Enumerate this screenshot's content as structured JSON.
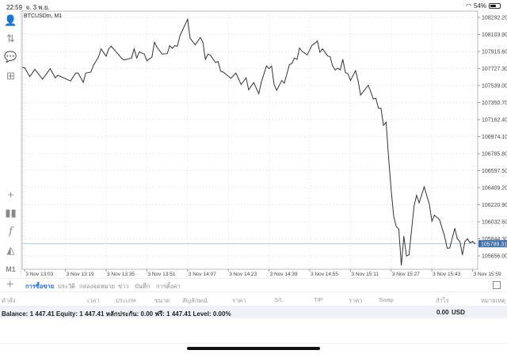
{
  "status_bar": {
    "time": "22:59",
    "date": "จ. 3 พ.ย.",
    "battery": "54%",
    "battery_level": 0.54,
    "wifi_icon": "wifi-icon"
  },
  "toolbar": {
    "items": [
      "account-icon",
      "trade-arrows-icon",
      "chat-icon",
      "new-document-icon",
      "crosshair-icon",
      "candles-icon",
      "indicators-icon",
      "objects-icon"
    ],
    "timeframe": "M1"
  },
  "chart_data": {
    "type": "line",
    "title": "BTCUSDm, M1",
    "current_price": "105789.31",
    "xlim": [
      "13:02",
      "16:01"
    ],
    "ylim": [
      105507,
      108362
    ],
    "grid": true,
    "y_ticks": [
      "108292.20",
      "108103.90",
      "107915.60",
      "107727.30",
      "107539.00",
      "107350.70",
      "107162.40",
      "106974.10",
      "106785.80",
      "106597.50",
      "106409.20",
      "106220.90",
      "106032.60",
      "105844.30",
      "105656.00"
    ],
    "x_ticks": [
      "3 Nov 13:03",
      "3 Nov 13:19",
      "3 Nov 13:35",
      "3 Nov 13:51",
      "3 Nov 14:07",
      "3 Nov 14:23",
      "3 Nov 14:39",
      "3 Nov 14:55",
      "3 Nov 15:11",
      "3 Nov 15:27",
      "3 Nov 15:43",
      "3 Nov 15:59"
    ],
    "series": [
      {
        "x": [
          "13:02",
          "13:03",
          "13:05",
          "13:07",
          "13:10",
          "13:13",
          "13:15",
          "13:16",
          "13:21",
          "13:23",
          "13:24",
          "13:26",
          "13:27",
          "13:29",
          "13:30",
          "13:32",
          "13:33",
          "13:35",
          "13:36",
          "13:37",
          "13:41",
          "13:42",
          "13:45",
          "13:46",
          "13:47",
          "13:48",
          "13:50",
          "13:51",
          "13:53",
          "13:54",
          "13:55",
          "13:57",
          "13:59",
          "14:00",
          "14:01",
          "14:02",
          "14:03",
          "14:04",
          "14:07",
          "14:08",
          "14:10",
          "14:12",
          "14:13",
          "14:14",
          "14:15",
          "14:16",
          "14:18",
          "14:19",
          "14:20",
          "14:21",
          "14:24",
          "14:26",
          "14:28",
          "14:30",
          "14:31",
          "14:33",
          "14:35",
          "14:36",
          "14:38",
          "14:39",
          "14:40",
          "14:41",
          "14:42",
          "14:44",
          "14:45",
          "14:47",
          "14:48",
          "14:49",
          "14:50",
          "14:51",
          "14:52",
          "14:54",
          "14:56",
          "14:57",
          "14:58",
          "14:59",
          "15:00",
          "15:02",
          "15:03",
          "15:04",
          "15:05",
          "15:06",
          "15:07",
          "15:08",
          "15:09",
          "15:10",
          "15:11",
          "15:13",
          "15:14",
          "15:15",
          "15:18",
          "15:20",
          "15:21",
          "15:22",
          "15:23",
          "15:24",
          "15:25",
          "15:26",
          "15:27",
          "15:28",
          "15:29",
          "15:30",
          "15:31",
          "15:32",
          "15:33",
          "15:34",
          "15:36",
          "15:37",
          "15:38",
          "15:40",
          "15:42",
          "15:43",
          "15:44",
          "15:46",
          "15:48",
          "15:49",
          "15:50",
          "15:52",
          "15:53",
          "15:54",
          "15:55",
          "15:56",
          "15:57",
          "15:58",
          "15:59",
          "16:00"
        ],
        "y": [
          107740,
          107735,
          107638,
          107717,
          107609,
          107725,
          107624,
          107653,
          107589,
          107676,
          107676,
          107574,
          107676,
          107688,
          107760,
          107857,
          107944,
          107863,
          107944,
          107974,
          107843,
          107822,
          107843,
          107944,
          107843,
          107909,
          107887,
          107813,
          107852,
          108018,
          107959,
          107887,
          107892,
          107979,
          107950,
          107979,
          107974,
          108091,
          108272,
          108062,
          107988,
          108070,
          108018,
          107828,
          107887,
          107872,
          107793,
          107804,
          107696,
          107688,
          107618,
          107676,
          107550,
          107624,
          107492,
          107571,
          107449,
          107580,
          107755,
          107725,
          107755,
          107550,
          107486,
          107594,
          107565,
          107769,
          107784,
          107843,
          107828,
          107953,
          107916,
          107878,
          107988,
          108003,
          108032,
          107907,
          107944,
          107866,
          107857,
          107755,
          107711,
          107731,
          107711,
          107828,
          107682,
          107668,
          107594,
          107703,
          107594,
          107434,
          107542,
          107390,
          107399,
          107288,
          107288,
          107098,
          107133,
          106733,
          106383,
          106091,
          105980,
          105951,
          105551,
          105872,
          105653,
          105667,
          106208,
          106324,
          106243,
          106418,
          106223,
          106039,
          106105,
          106056,
          105872,
          105741,
          105741,
          105960,
          105843,
          105814,
          105667,
          105814,
          105843,
          105799,
          105814,
          105789
        ]
      }
    ]
  },
  "tabs": {
    "items": [
      "การซื้อขาย",
      "ประวัติ",
      "กล่องจดหมาย",
      "ข่าว",
      "บันทึก",
      "การตั้งค่า"
    ],
    "active": 0
  },
  "columns": [
    "คำสั่ง",
    "เวลา",
    "ประเภท",
    "ขนาด",
    "สัญลักษณ์",
    "ราคา",
    "S/L",
    "T/P",
    "ราคา",
    "Swap",
    "กำไร",
    "หมายเหตุ"
  ],
  "balance": {
    "summary": "Balance: 1 447.41 Equity: 1 447.41 หลักประกัน: 0.00 ฟรี: 1 447.41 Level: 0.00%",
    "profit": "0.00",
    "currency": "USD"
  },
  "colors": {
    "accent": "#2a6fd6",
    "price_label": "#3d6ea8",
    "line": "#333333"
  }
}
